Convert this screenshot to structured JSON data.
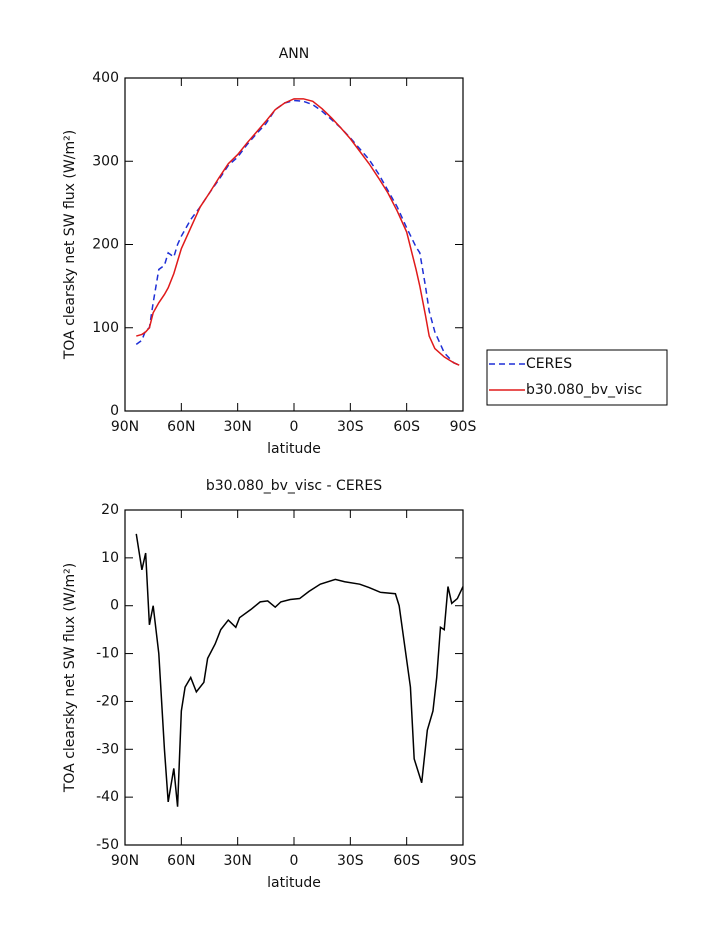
{
  "chart_data": [
    {
      "type": "line",
      "title": "ANN",
      "x_label": "latitude",
      "y_label": "TOA clearsky net SW flux (W/m²)",
      "x": [
        84,
        81,
        79,
        77,
        75,
        72,
        69,
        67,
        64,
        62,
        60,
        55,
        50,
        45,
        40,
        35,
        30,
        25,
        20,
        15,
        10,
        5,
        0,
        -5,
        -10,
        -15,
        -20,
        -25,
        -30,
        -35,
        -40,
        -45,
        -50,
        -55,
        -60,
        -65,
        -67,
        -70,
        -72,
        -75,
        -80,
        -85,
        -88
      ],
      "series": [
        {
          "name": "CERES",
          "color": "#1f2fd6",
          "style": "dashed",
          "values": [
            80,
            85,
            97,
            100,
            130,
            170,
            175,
            190,
            185,
            200,
            210,
            230,
            245,
            262,
            278,
            295,
            305,
            320,
            333,
            345,
            362,
            370,
            373,
            372,
            368,
            360,
            350,
            340,
            328,
            315,
            302,
            285,
            265,
            245,
            220,
            197,
            190,
            150,
            120,
            95,
            70,
            58,
            55
          ]
        },
        {
          "name": "b30.080_bv_visc",
          "color": "#e01a1a",
          "style": "solid",
          "values": [
            90,
            92,
            95,
            100,
            118,
            130,
            140,
            148,
            165,
            180,
            195,
            220,
            245,
            262,
            280,
            297,
            308,
            322,
            335,
            348,
            362,
            370,
            375,
            375,
            372,
            363,
            352,
            340,
            327,
            312,
            297,
            280,
            262,
            240,
            215,
            170,
            150,
            115,
            90,
            75,
            65,
            58,
            55
          ]
        }
      ],
      "xlim": [
        90,
        -90
      ],
      "xticks": [
        {
          "value": 90,
          "label": "90N"
        },
        {
          "value": 60,
          "label": "60N"
        },
        {
          "value": 30,
          "label": "30N"
        },
        0,
        {
          "value": -30,
          "label": "30S"
        },
        {
          "value": -60,
          "label": "60S"
        },
        {
          "value": -90,
          "label": "90S"
        }
      ],
      "ylim": [
        0,
        400
      ],
      "yticks": [
        0,
        100,
        200,
        300,
        400
      ],
      "legend": "right"
    },
    {
      "type": "line",
      "title": "b30.080_bv_visc - CERES",
      "x_label": "latitude",
      "y_label": "TOA clearsky net SW flux (W/m²)",
      "x": [
        84,
        81,
        79,
        77,
        75,
        72,
        69,
        67,
        64,
        62,
        60,
        58,
        55,
        52,
        48,
        46,
        42,
        39,
        35,
        31,
        29,
        23,
        18,
        14,
        10,
        7,
        2,
        -3,
        -8,
        -14,
        -22,
        -27,
        -35,
        -40,
        -46,
        -54,
        -56,
        -62,
        -64,
        -68,
        -71,
        -74,
        -76,
        -78,
        -80,
        -82,
        -84,
        -87,
        -90
      ],
      "values": [
        15,
        7.5,
        11,
        -4,
        0,
        -10,
        -30,
        -41,
        -34,
        -42,
        -22,
        -17,
        -15,
        -18,
        -16,
        -11,
        -8,
        -5,
        -3,
        -4.5,
        -2.5,
        -0.8,
        0.8,
        1,
        -0.3,
        0.8,
        1.3,
        1.5,
        3,
        4.5,
        5.5,
        5,
        4.5,
        3.8,
        2.8,
        2.5,
        0,
        -17,
        -32,
        -37,
        -26,
        -22,
        -15,
        -4.5,
        -5,
        4,
        0.5,
        1.5,
        4
      ],
      "color": "#000000",
      "xlim": [
        90,
        -90
      ],
      "xticks": [
        {
          "value": 90,
          "label": "90N"
        },
        {
          "value": 60,
          "label": "60N"
        },
        {
          "value": 30,
          "label": "30N"
        },
        0,
        {
          "value": -30,
          "label": "30S"
        },
        {
          "value": -60,
          "label": "60S"
        },
        {
          "value": -90,
          "label": "90S"
        }
      ],
      "ylim": [
        -50,
        20
      ],
      "yticks": [
        -50,
        -40,
        -30,
        -20,
        -10,
        0,
        10,
        20
      ]
    }
  ]
}
